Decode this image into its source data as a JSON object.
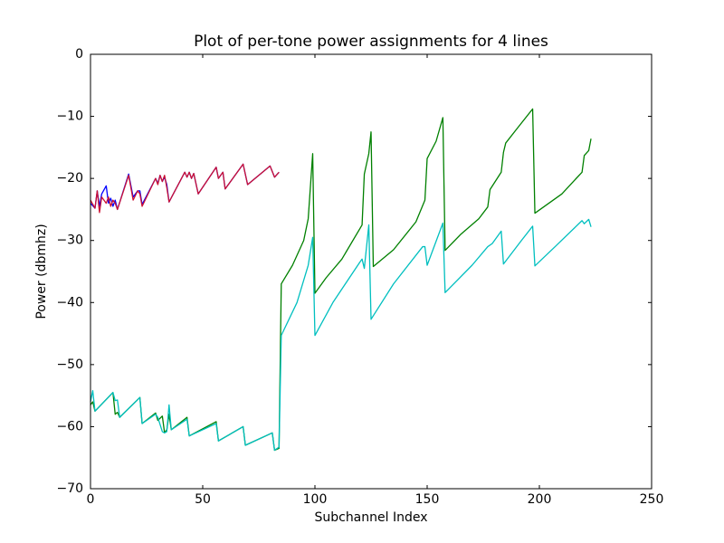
{
  "chart_data": {
    "type": "line",
    "title": "Plot of per-tone power assignments for 4 lines",
    "x_label": "Subchannel Index",
    "y_label": "Power (dbmhz)",
    "xlim": [
      0,
      250
    ],
    "ylim": [
      -70,
      0
    ],
    "xticks": [
      0,
      50,
      100,
      150,
      200,
      250
    ],
    "yticks": [
      {
        "value": -70,
        "label": "−70"
      },
      {
        "value": -60,
        "label": "−60"
      },
      {
        "value": -50,
        "label": "−50"
      },
      {
        "value": -40,
        "label": "−40"
      },
      {
        "value": -30,
        "label": "−30"
      },
      {
        "value": -20,
        "label": "−20"
      },
      {
        "value": -10,
        "label": "−10"
      },
      0
    ],
    "series": [
      {
        "color": "#0000ff",
        "x": [
          0,
          2,
          3,
          4,
          5,
          7,
          8,
          9,
          10,
          11,
          12,
          17,
          19,
          21,
          22,
          23,
          29,
          30,
          31,
          32,
          33,
          34,
          35,
          42,
          43,
          44,
          45,
          46,
          48,
          56,
          57,
          59,
          60,
          68,
          70,
          80,
          82,
          84
        ],
        "values": [
          -24.0,
          -24.8,
          -22.0,
          -24.5,
          -22.5,
          -21.2,
          -24.0,
          -23.2,
          -24.5,
          -23.5,
          -25.0,
          -19.3,
          -23.0,
          -22.0,
          -22.0,
          -24.2,
          -20.0,
          -20.8,
          -19.5,
          -20.5,
          -19.8,
          -21.0,
          -23.8,
          -19.0,
          -19.8,
          -19.0,
          -20.0,
          -19.2,
          -22.5,
          -18.2,
          -20.0,
          -19.0,
          -21.7,
          -17.7,
          -21.0,
          -18.0,
          -19.8,
          -19.0
        ]
      },
      {
        "color": "#008000",
        "x": [
          0,
          1,
          2,
          10,
          11,
          12,
          13,
          22,
          23,
          29,
          30,
          32,
          33,
          34,
          35,
          36,
          43,
          44,
          56,
          57,
          68,
          69,
          81,
          82,
          84,
          85,
          90,
          95,
          97,
          99,
          100,
          105,
          112,
          121,
          122,
          124,
          125,
          126,
          135,
          145,
          149,
          150,
          154,
          157,
          158,
          165,
          173,
          177,
          178,
          183,
          184,
          185,
          190,
          197,
          198,
          210,
          219,
          220,
          222,
          223
        ],
        "values": [
          -56.5,
          -56.0,
          -57.5,
          -54.5,
          -58.0,
          -57.7,
          -58.5,
          -55.3,
          -59.5,
          -57.8,
          -59.0,
          -58.3,
          -61.0,
          -60.5,
          -58.0,
          -60.5,
          -58.5,
          -61.5,
          -59.2,
          -62.3,
          -60.0,
          -63.0,
          -61.0,
          -63.8,
          -63.5,
          -37.0,
          -34.0,
          -30.0,
          -26.5,
          -16.0,
          -38.5,
          -36.0,
          -33.0,
          -27.5,
          -19.3,
          -16.0,
          -12.5,
          -34.2,
          -31.5,
          -27.0,
          -23.5,
          -16.8,
          -14.0,
          -10.2,
          -31.6,
          -29.0,
          -26.5,
          -24.6,
          -21.8,
          -19.0,
          -15.8,
          -14.3,
          -12.0,
          -8.8,
          -25.6,
          -22.5,
          -19.0,
          -16.3,
          -15.5,
          -13.6
        ]
      },
      {
        "color": "#cc1133",
        "x": [
          0,
          2,
          3,
          4,
          5,
          7,
          8,
          9,
          10,
          11,
          12,
          17,
          19,
          21,
          22,
          23,
          29,
          30,
          31,
          32,
          33,
          34,
          35,
          42,
          43,
          44,
          45,
          46,
          48,
          56,
          57,
          59,
          60,
          68,
          70,
          80,
          82,
          84
        ],
        "values": [
          -23.5,
          -24.8,
          -22.0,
          -25.5,
          -23.0,
          -24.0,
          -23.0,
          -24.5,
          -23.5,
          -24.0,
          -25.0,
          -19.5,
          -23.5,
          -22.0,
          -22.5,
          -24.5,
          -20.0,
          -21.0,
          -19.5,
          -20.5,
          -19.5,
          -21.5,
          -23.8,
          -19.0,
          -19.8,
          -19.0,
          -20.0,
          -19.2,
          -22.5,
          -18.2,
          -20.0,
          -19.0,
          -21.7,
          -17.7,
          -21.0,
          -18.0,
          -19.8,
          -19.0
        ]
      },
      {
        "color": "#00bfbf",
        "x": [
          0,
          1,
          2,
          10,
          11,
          12,
          13,
          22,
          23,
          29,
          30,
          32,
          33,
          34,
          35,
          36,
          43,
          44,
          56,
          57,
          68,
          69,
          81,
          82,
          84,
          85,
          92,
          97,
          99,
          100,
          108,
          120,
          121,
          122,
          124,
          125,
          135,
          148,
          149,
          150,
          157,
          158,
          170,
          177,
          179,
          183,
          184,
          192,
          197,
          198,
          207,
          219,
          220,
          222,
          223
        ],
        "values": [
          -56.0,
          -54.2,
          -57.5,
          -54.5,
          -55.8,
          -55.7,
          -58.5,
          -55.3,
          -59.5,
          -58.0,
          -58.5,
          -60.8,
          -61.0,
          -60.8,
          -56.5,
          -60.5,
          -58.8,
          -61.5,
          -59.5,
          -62.3,
          -60.0,
          -63.0,
          -61.0,
          -63.8,
          -63.3,
          -45.3,
          -40.0,
          -34.0,
          -29.5,
          -45.3,
          -40.0,
          -33.5,
          -33.0,
          -34.5,
          -27.5,
          -42.7,
          -37.0,
          -31.0,
          -31.0,
          -34.0,
          -27.2,
          -38.4,
          -34.0,
          -31.0,
          -30.5,
          -28.5,
          -33.8,
          -30.0,
          -27.7,
          -34.1,
          -31.0,
          -26.8,
          -27.3,
          -26.6,
          -27.8
        ]
      }
    ]
  }
}
